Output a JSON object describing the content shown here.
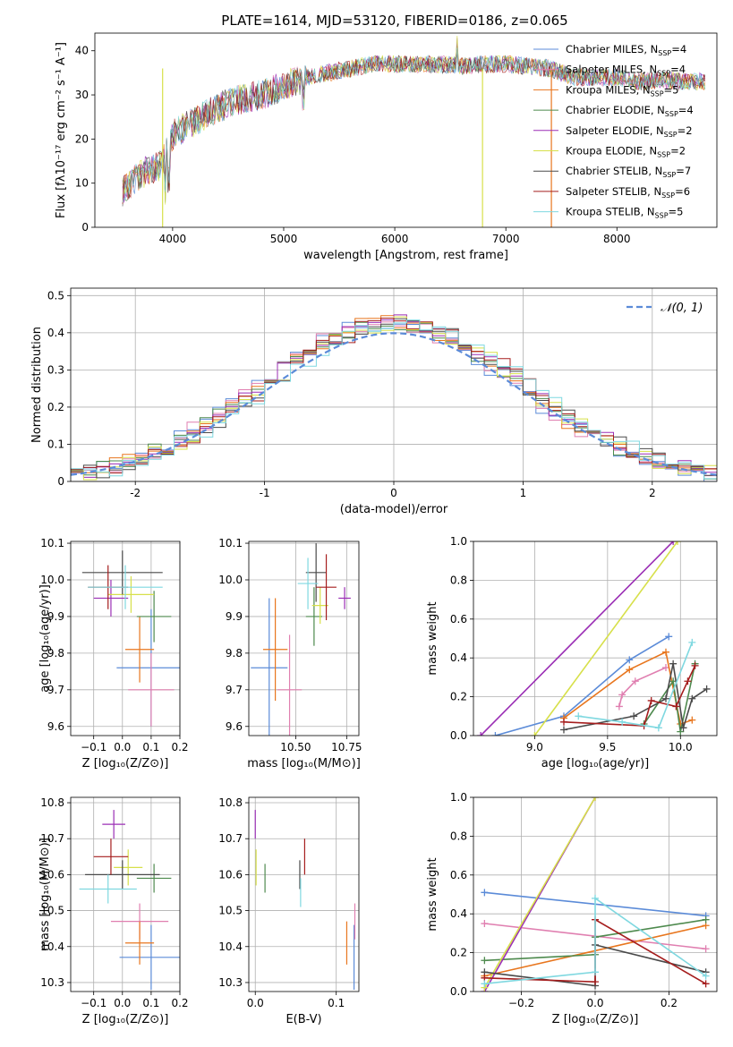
{
  "figure_title": "PLATE=1614, MJD=53120, FIBERID=0186, z=0.065",
  "models": [
    {
      "name": "Chabrier MILES",
      "nssp": "4",
      "color": "#5b8bd8"
    },
    {
      "name": "Salpeter MILES",
      "nssp": "4",
      "color": "#e07fb0"
    },
    {
      "name": "Kroupa MILES",
      "nssp": "5",
      "color": "#e8761e"
    },
    {
      "name": "Chabrier ELODIE",
      "nssp": "4",
      "color": "#4e8a4e"
    },
    {
      "name": "Salpeter ELODIE",
      "nssp": "2",
      "color": "#9b2fb5"
    },
    {
      "name": "Kroupa ELODIE",
      "nssp": "2",
      "color": "#d7e04a"
    },
    {
      "name": "Chabrier STELIB",
      "nssp": "7",
      "color": "#4a4a4a"
    },
    {
      "name": "Salpeter STELIB",
      "nssp": "6",
      "color": "#a51d1d"
    },
    {
      "name": "Kroupa STELIB",
      "nssp": "5",
      "color": "#7fd8e0"
    }
  ],
  "chart_data": [
    {
      "id": "spectrum",
      "type": "line",
      "xlabel": "wavelength [Angstrom, rest frame]",
      "ylabel": "Flux [fλ10⁻¹⁷ erg cm⁻² s⁻¹ A⁻¹]",
      "xlim": [
        3300,
        8900
      ],
      "ylim": [
        0,
        44
      ],
      "xticks": [
        4000,
        5000,
        6000,
        7000,
        8000
      ],
      "yticks": [
        0,
        10,
        20,
        30,
        40
      ],
      "legend": "upper right",
      "continuum": {
        "x": [
          3550,
          3700,
          3900,
          4000,
          4200,
          4400,
          4600,
          4800,
          5000,
          5200,
          5400,
          5600,
          5800,
          6000,
          6200,
          6400,
          6600,
          6800,
          7000,
          7200,
          7400,
          7600,
          7800,
          8000,
          8200,
          8400,
          8600,
          8800
        ],
        "y": [
          8,
          12,
          14,
          21,
          24,
          27,
          29,
          30,
          32,
          34,
          35,
          36,
          37,
          37,
          37,
          37,
          36.5,
          37,
          37,
          36.5,
          36,
          34,
          34,
          34,
          33,
          33.5,
          33,
          33
        ]
      }
    },
    {
      "id": "residuals",
      "type": "bar",
      "xlabel": "(data-model)/error",
      "ylabel": "Normed distribution",
      "xlim": [
        -2.5,
        2.5
      ],
      "ylim": [
        0,
        0.52
      ],
      "xticks": [
        -2,
        -1,
        0,
        1,
        2
      ],
      "yticks": [
        0.0,
        0.1,
        0.2,
        0.3,
        0.4,
        0.5
      ],
      "legend": "upper right",
      "gaussian_label": "𝒩(0, 1)",
      "gaussian_color": "#5b8bd8",
      "bin_width": 0.1
    },
    {
      "id": "age-vs-Z",
      "type": "scatter",
      "xlabel": "Z [log₁₀(Z/Z⊙)]",
      "ylabel": "age  [log₁₀(age/yr)]",
      "xlim": [
        -0.18,
        0.2
      ],
      "ylim": [
        9.575,
        10.105
      ],
      "xticks": [
        "−0.1",
        "0.0",
        "0.1",
        "0.2"
      ],
      "yticks": [
        "9.6",
        "9.7",
        "9.8",
        "9.9",
        "10.0",
        "10.1"
      ],
      "points": [
        {
          "x": 0.1,
          "y": 9.76,
          "ex": 0.12,
          "ey": 0.16
        },
        {
          "x": 0.1,
          "y": 9.7,
          "ex": 0.08,
          "ey": 0.1
        },
        {
          "x": 0.06,
          "y": 9.81,
          "ex": 0.05,
          "ey": 0.09
        },
        {
          "x": 0.11,
          "y": 9.9,
          "ex": 0.06,
          "ey": 0.07
        },
        {
          "x": -0.04,
          "y": 9.95,
          "ex": 0.06,
          "ey": 0.05
        },
        {
          "x": 0.03,
          "y": 9.96,
          "ex": 0.08,
          "ey": 0.05
        },
        {
          "x": 0.0,
          "y": 10.02,
          "ex": 0.14,
          "ey": 0.06
        },
        {
          "x": -0.05,
          "y": 9.98,
          "ex": 0.07,
          "ey": 0.06
        },
        {
          "x": 0.01,
          "y": 9.98,
          "ex": 0.13,
          "ey": 0.06
        }
      ]
    },
    {
      "id": "age-vs-mass",
      "type": "scatter",
      "xlabel": "mass [log₁₀(M/M⊙)]",
      "ylabel": "",
      "xlim": [
        10.27,
        10.81
      ],
      "ylim": [
        9.575,
        10.105
      ],
      "xticks": [
        "10.50",
        "10.75"
      ],
      "yticks": [
        "9.6",
        "9.7",
        "9.8",
        "9.9",
        "10.0",
        "10.1"
      ],
      "points": [
        {
          "x": 10.37,
          "y": 9.76,
          "ex": 0.09,
          "ey": 0.19
        },
        {
          "x": 10.47,
          "y": 9.7,
          "ex": 0.06,
          "ey": 0.15
        },
        {
          "x": 10.4,
          "y": 9.81,
          "ex": 0.06,
          "ey": 0.14
        },
        {
          "x": 10.59,
          "y": 9.9,
          "ex": 0.04,
          "ey": 0.08
        },
        {
          "x": 10.74,
          "y": 9.95,
          "ex": 0.03,
          "ey": 0.03
        },
        {
          "x": 10.62,
          "y": 9.93,
          "ex": 0.04,
          "ey": 0.05
        },
        {
          "x": 10.6,
          "y": 10.02,
          "ex": 0.05,
          "ey": 0.08
        },
        {
          "x": 10.65,
          "y": 9.98,
          "ex": 0.05,
          "ey": 0.09
        },
        {
          "x": 10.56,
          "y": 9.99,
          "ex": 0.05,
          "ey": 0.07
        }
      ]
    },
    {
      "id": "mass-weight-vs-age",
      "type": "line",
      "xlabel": "age  [log₁₀(age/yr)]",
      "ylabel": "mass weight",
      "xlim": [
        8.58,
        10.25
      ],
      "ylim": [
        0,
        1.0
      ],
      "xticks": [
        "9.0",
        "9.5",
        "10.0"
      ],
      "yticks": [
        "0.0",
        "0.2",
        "0.4",
        "0.6",
        "0.8",
        "1.0"
      ],
      "series": [
        {
          "x": [
            8.73,
            9.2,
            9.65,
            9.92
          ],
          "y": [
            0.0,
            0.1,
            0.39,
            0.51
          ]
        },
        {
          "x": [
            9.58,
            9.6,
            9.69,
            9.9
          ],
          "y": [
            0.15,
            0.21,
            0.28,
            0.35
          ]
        },
        {
          "x": [
            9.2,
            9.65,
            9.9,
            10.0,
            10.08
          ],
          "y": [
            0.09,
            0.34,
            0.43,
            0.06,
            0.08
          ]
        },
        {
          "x": [
            9.75,
            9.95,
            10.0,
            10.1
          ],
          "y": [
            0.06,
            0.28,
            0.02,
            0.37
          ]
        },
        {
          "x": [
            8.63,
            9.95
          ],
          "y": [
            0.0,
            1.0
          ]
        },
        {
          "x": [
            9.0,
            9.98
          ],
          "y": [
            0.0,
            1.0
          ]
        },
        {
          "x": [
            9.2,
            9.68,
            9.9,
            9.95,
            10.02,
            10.08,
            10.18
          ],
          "y": [
            0.03,
            0.1,
            0.19,
            0.37,
            0.04,
            0.19,
            0.24
          ]
        },
        {
          "x": [
            9.2,
            9.75,
            9.8,
            9.97,
            10.05,
            10.1
          ],
          "y": [
            0.07,
            0.05,
            0.18,
            0.15,
            0.28,
            0.36
          ]
        },
        {
          "x": [
            9.3,
            9.6,
            9.85,
            10.08
          ],
          "y": [
            0.1,
            0.07,
            0.04,
            0.48
          ]
        }
      ]
    },
    {
      "id": "mass-vs-Z",
      "type": "scatter",
      "xlabel": "Z [log₁₀(Z/Z⊙)]",
      "ylabel": "mass [log₁₀(M/M⊙)]",
      "xlim": [
        -0.18,
        0.2
      ],
      "ylim": [
        10.275,
        10.815
      ],
      "xticks": [
        "−0.1",
        "0.0",
        "0.1",
        "0.2"
      ],
      "yticks": [
        "10.3",
        "10.4",
        "10.5",
        "10.6",
        "10.7",
        "10.8"
      ],
      "points": [
        {
          "x": 0.1,
          "y": 10.37,
          "ex": 0.11,
          "ey": 0.09
        },
        {
          "x": 0.06,
          "y": 10.47,
          "ex": 0.1,
          "ey": 0.05
        },
        {
          "x": 0.06,
          "y": 10.41,
          "ex": 0.05,
          "ey": 0.06
        },
        {
          "x": 0.11,
          "y": 10.59,
          "ex": 0.06,
          "ey": 0.04
        },
        {
          "x": -0.03,
          "y": 10.74,
          "ex": 0.04,
          "ey": 0.04
        },
        {
          "x": 0.02,
          "y": 10.62,
          "ex": 0.05,
          "ey": 0.05
        },
        {
          "x": 0.0,
          "y": 10.6,
          "ex": 0.13,
          "ey": 0.04
        },
        {
          "x": -0.04,
          "y": 10.65,
          "ex": 0.06,
          "ey": 0.05
        },
        {
          "x": -0.05,
          "y": 10.56,
          "ex": 0.1,
          "ey": 0.04
        }
      ]
    },
    {
      "id": "mass-vs-ebv",
      "type": "scatter",
      "xlabel": "E(B-V)",
      "ylabel": "",
      "xlim": [
        -0.008,
        0.128
      ],
      "ylim": [
        10.275,
        10.815
      ],
      "xticks": [
        "0.0",
        "0.1"
      ],
      "yticks": [
        "10.3",
        "10.4",
        "10.5",
        "10.6",
        "10.7",
        "10.8"
      ],
      "points": [
        {
          "x": 0.122,
          "y": 10.37,
          "ex": 0,
          "ey": 0.09
        },
        {
          "x": 0.123,
          "y": 10.47,
          "ex": 0,
          "ey": 0.05
        },
        {
          "x": 0.113,
          "y": 10.41,
          "ex": 0,
          "ey": 0.06
        },
        {
          "x": 0.012,
          "y": 10.59,
          "ex": 0,
          "ey": 0.04
        },
        {
          "x": 0.0,
          "y": 10.74,
          "ex": 0,
          "ey": 0.04
        },
        {
          "x": 0.001,
          "y": 10.62,
          "ex": 0,
          "ey": 0.05
        },
        {
          "x": 0.055,
          "y": 10.6,
          "ex": 0,
          "ey": 0.04
        },
        {
          "x": 0.061,
          "y": 10.65,
          "ex": 0,
          "ey": 0.05
        },
        {
          "x": 0.056,
          "y": 10.55,
          "ex": 0,
          "ey": 0.04
        }
      ]
    },
    {
      "id": "mass-weight-vs-Z",
      "type": "line",
      "xlabel": "Z [log₁₀(Z/Z⊙)]",
      "ylabel": "mass weight",
      "xlim": [
        -0.33,
        0.33
      ],
      "ylim": [
        0,
        1.0
      ],
      "xticks": [
        "−0.2",
        "0.0",
        "0.2"
      ],
      "yticks": [
        "0.0",
        "0.2",
        "0.4",
        "0.6",
        "0.8",
        "1.0"
      ],
      "series": [
        {
          "x": [
            -0.3,
            0.3
          ],
          "y": [
            0.51,
            0.39
          ]
        },
        {
          "x": [
            -0.3,
            0.3
          ],
          "y": [
            0.35,
            0.22
          ]
        },
        {
          "x": [
            -0.3,
            0.3
          ],
          "y": [
            0.08,
            0.34
          ]
        },
        {
          "x": [
            -0.3,
            0.0,
            0.0,
            0.3
          ],
          "y": [
            0.16,
            0.19,
            0.28,
            0.37
          ]
        },
        {
          "x": [
            -0.3,
            0.0
          ],
          "y": [
            0.0,
            1.0
          ]
        },
        {
          "x": [
            -0.3,
            0.0
          ],
          "y": [
            0.02,
            1.0
          ]
        },
        {
          "x": [
            -0.3,
            0.0,
            0.0,
            0.3
          ],
          "y": [
            0.1,
            0.03,
            0.24,
            0.1
          ]
        },
        {
          "x": [
            -0.3,
            0.0,
            0.0,
            0.3
          ],
          "y": [
            0.07,
            0.05,
            0.37,
            0.04
          ]
        },
        {
          "x": [
            -0.3,
            0.0,
            0.0,
            0.3
          ],
          "y": [
            0.04,
            0.1,
            0.48,
            0.08
          ]
        }
      ]
    }
  ]
}
